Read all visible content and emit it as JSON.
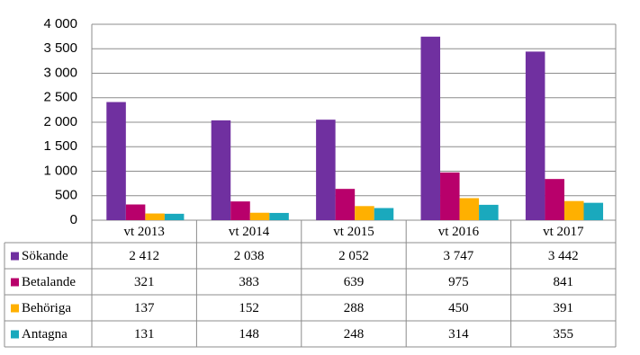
{
  "chart_data": {
    "type": "bar",
    "categories": [
      "vt 2013",
      "vt 2014",
      "vt 2015",
      "vt 2016",
      "vt 2017"
    ],
    "series": [
      {
        "name": "Sökande",
        "color": "#7030a0",
        "values": [
          2412,
          2038,
          2052,
          3747,
          3442
        ],
        "value_labels": [
          "2 412",
          "2 038",
          "2 052",
          "3 747",
          "3 442"
        ]
      },
      {
        "name": "Betalande",
        "color": "#b8006b",
        "values": [
          321,
          383,
          639,
          975,
          841
        ]
      },
      {
        "name": "Behöriga",
        "color": "#ffb000",
        "values": [
          137,
          152,
          288,
          450,
          391
        ]
      },
      {
        "name": "Antagna",
        "color": "#1aa9bd",
        "values": [
          131,
          148,
          248,
          314,
          355
        ]
      }
    ],
    "ylim": [
      0,
      4000
    ],
    "yticks": [
      0,
      500,
      {
        "value": 1000,
        "label": "1 000"
      },
      {
        "value": 1500,
        "label": "1 500"
      },
      {
        "value": 2000,
        "label": "2 000"
      },
      {
        "value": 2500,
        "label": "2 500"
      },
      {
        "value": 3000,
        "label": "3 000"
      },
      {
        "value": 3500,
        "label": "3 500"
      },
      {
        "value": 4000,
        "label": "4 000"
      }
    ],
    "grid": true
  }
}
